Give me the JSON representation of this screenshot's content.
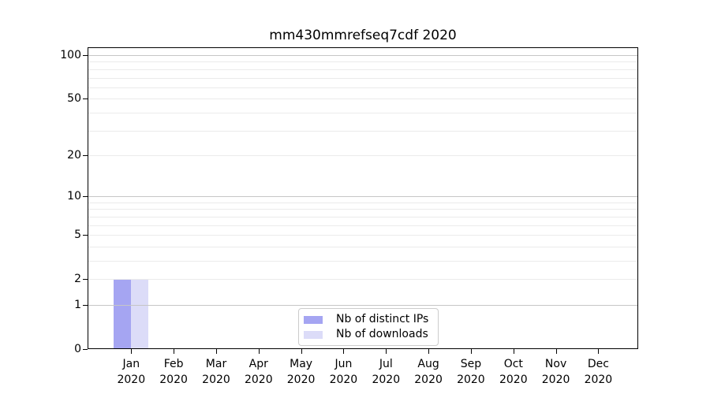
{
  "title": "mm430mmrefseq7cdf 2020",
  "legend": {
    "position": "lower center",
    "items": [
      {
        "label": "Nb of distinct IPs",
        "color": "#a5a5f2"
      },
      {
        "label": "Nb of downloads",
        "color": "#dcdcf8"
      }
    ]
  },
  "chart_data": {
    "type": "bar",
    "title": "mm430mmrefseq7cdf 2020",
    "xlabel": "",
    "ylabel": "",
    "categories": [
      "Jan",
      "Feb",
      "Mar",
      "Apr",
      "May",
      "Jun",
      "Jul",
      "Aug",
      "Sep",
      "Oct",
      "Nov",
      "Dec"
    ],
    "year_label": "2020",
    "series": [
      {
        "name": "Nb of distinct IPs",
        "color": "#a5a5f2",
        "values": [
          2,
          0,
          0,
          0,
          0,
          0,
          0,
          0,
          0,
          0,
          0,
          0
        ]
      },
      {
        "name": "Nb of downloads",
        "color": "#dcdcf8",
        "values": [
          2,
          0,
          0,
          0,
          0,
          0,
          0,
          0,
          0,
          0,
          0,
          0
        ]
      }
    ],
    "yscale": "log1p",
    "ylim": [
      0,
      113
    ],
    "y_ticks": [
      {
        "value": 0,
        "label": "0"
      },
      {
        "value": 1,
        "label": "1"
      },
      {
        "value": 2,
        "label": "2"
      },
      {
        "value": 5,
        "label": "5"
      },
      {
        "value": 10,
        "label": "10"
      },
      {
        "value": 20,
        "label": "20"
      },
      {
        "value": 50,
        "label": "50"
      },
      {
        "value": 100,
        "label": "100"
      }
    ],
    "grid": {
      "on": true,
      "major_values": [
        1,
        10,
        100
      ],
      "minor_values": [
        2,
        3,
        4,
        5,
        6,
        7,
        8,
        9,
        20,
        30,
        40,
        50,
        60,
        70,
        80,
        90
      ],
      "major_color": "#c6c6c6",
      "minor_color": "#ebebeb"
    },
    "colors": {
      "axis": "#000000",
      "background": "#ffffff",
      "text": "#000000"
    }
  }
}
